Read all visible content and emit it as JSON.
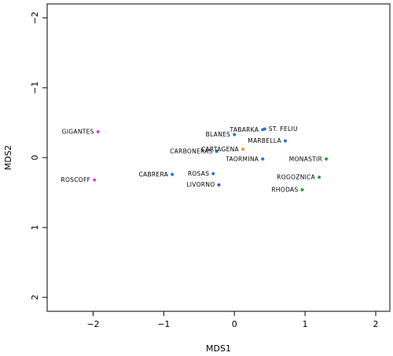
{
  "chart_data": {
    "type": "scatter",
    "title": "",
    "xlabel": "MDS1",
    "ylabel": "MDS2",
    "xlim": [
      -2.65,
      2.2
    ],
    "ylim": [
      -2.2,
      2.2
    ],
    "y_reversed": true,
    "x_ticks": [
      -2,
      -1,
      0,
      1,
      2
    ],
    "x_tick_labels": [
      "−2",
      "−1",
      "0",
      "1",
      "2"
    ],
    "y_ticks": [
      -2,
      -1,
      0,
      1,
      2
    ],
    "y_tick_labels": [
      "−2",
      "−1",
      "0",
      "1",
      "2"
    ],
    "grid": false,
    "points": [
      {
        "label": "GIGANTES",
        "x": -1.93,
        "y": -0.37,
        "color": "#e040e0"
      },
      {
        "label": "ROSCOFF",
        "x": -1.98,
        "y": 0.32,
        "color": "#e040e0"
      },
      {
        "label": "CABRERA",
        "x": -0.88,
        "y": 0.24,
        "color": "#1f78d4"
      },
      {
        "label": "ROSAS",
        "x": -0.3,
        "y": 0.23,
        "color": "#1f78d4"
      },
      {
        "label": "LIVORNO",
        "x": -0.22,
        "y": 0.39,
        "color": "#8a2be2"
      },
      {
        "label": "CARBONERAS",
        "x": -0.25,
        "y": -0.09,
        "color": "#1f78d4"
      },
      {
        "label": "CARTAGENA",
        "x": 0.12,
        "y": -0.12,
        "color": "#ff8c1a"
      },
      {
        "label": "BLANES",
        "x": 0.0,
        "y": -0.33,
        "color": "#1f78d4"
      },
      {
        "label": "TABARKA",
        "x": 0.4,
        "y": -0.4,
        "color": "#1f78d4"
      },
      {
        "label": "ST. FELIU",
        "x": 0.43,
        "y": -0.41,
        "color": "#1f78d4"
      },
      {
        "label": "MARBELLA",
        "x": 0.72,
        "y": -0.24,
        "color": "#1f78d4"
      },
      {
        "label": "TAORMINA",
        "x": 0.4,
        "y": 0.02,
        "color": "#1f78d4"
      },
      {
        "label": "MONASTIR",
        "x": 1.3,
        "y": 0.02,
        "color": "#2e9e2e"
      },
      {
        "label": "ROGOZNICA",
        "x": 1.2,
        "y": 0.28,
        "color": "#2e9e2e"
      },
      {
        "label": "RHODAS",
        "x": 0.96,
        "y": 0.46,
        "color": "#2e9e2e"
      }
    ]
  }
}
